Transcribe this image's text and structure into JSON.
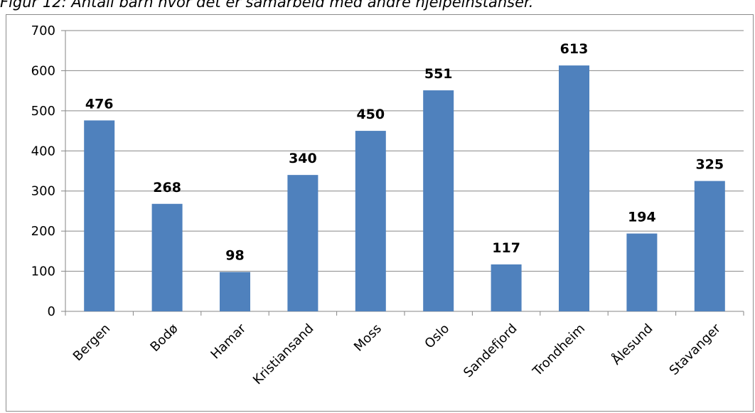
{
  "figure": {
    "caption": "Figur 12: Antall barn hvor det er samarbeid med andre hjelpeinstanser."
  },
  "chart_data": {
    "type": "bar",
    "categories": [
      "Bergen",
      "Bodø",
      "Hamar",
      "Kristiansand",
      "Moss",
      "Oslo",
      "Sandefjord",
      "Trondheim",
      "Ålesund",
      "Stavanger"
    ],
    "values": [
      476,
      268,
      98,
      340,
      450,
      551,
      117,
      613,
      194,
      325
    ],
    "ylim": [
      0,
      700
    ],
    "yticks": [
      0,
      100,
      200,
      300,
      400,
      500,
      600,
      700
    ],
    "grid": true,
    "legend": "none",
    "bar_color": "#4f81bd",
    "grid_color": "#868686"
  }
}
